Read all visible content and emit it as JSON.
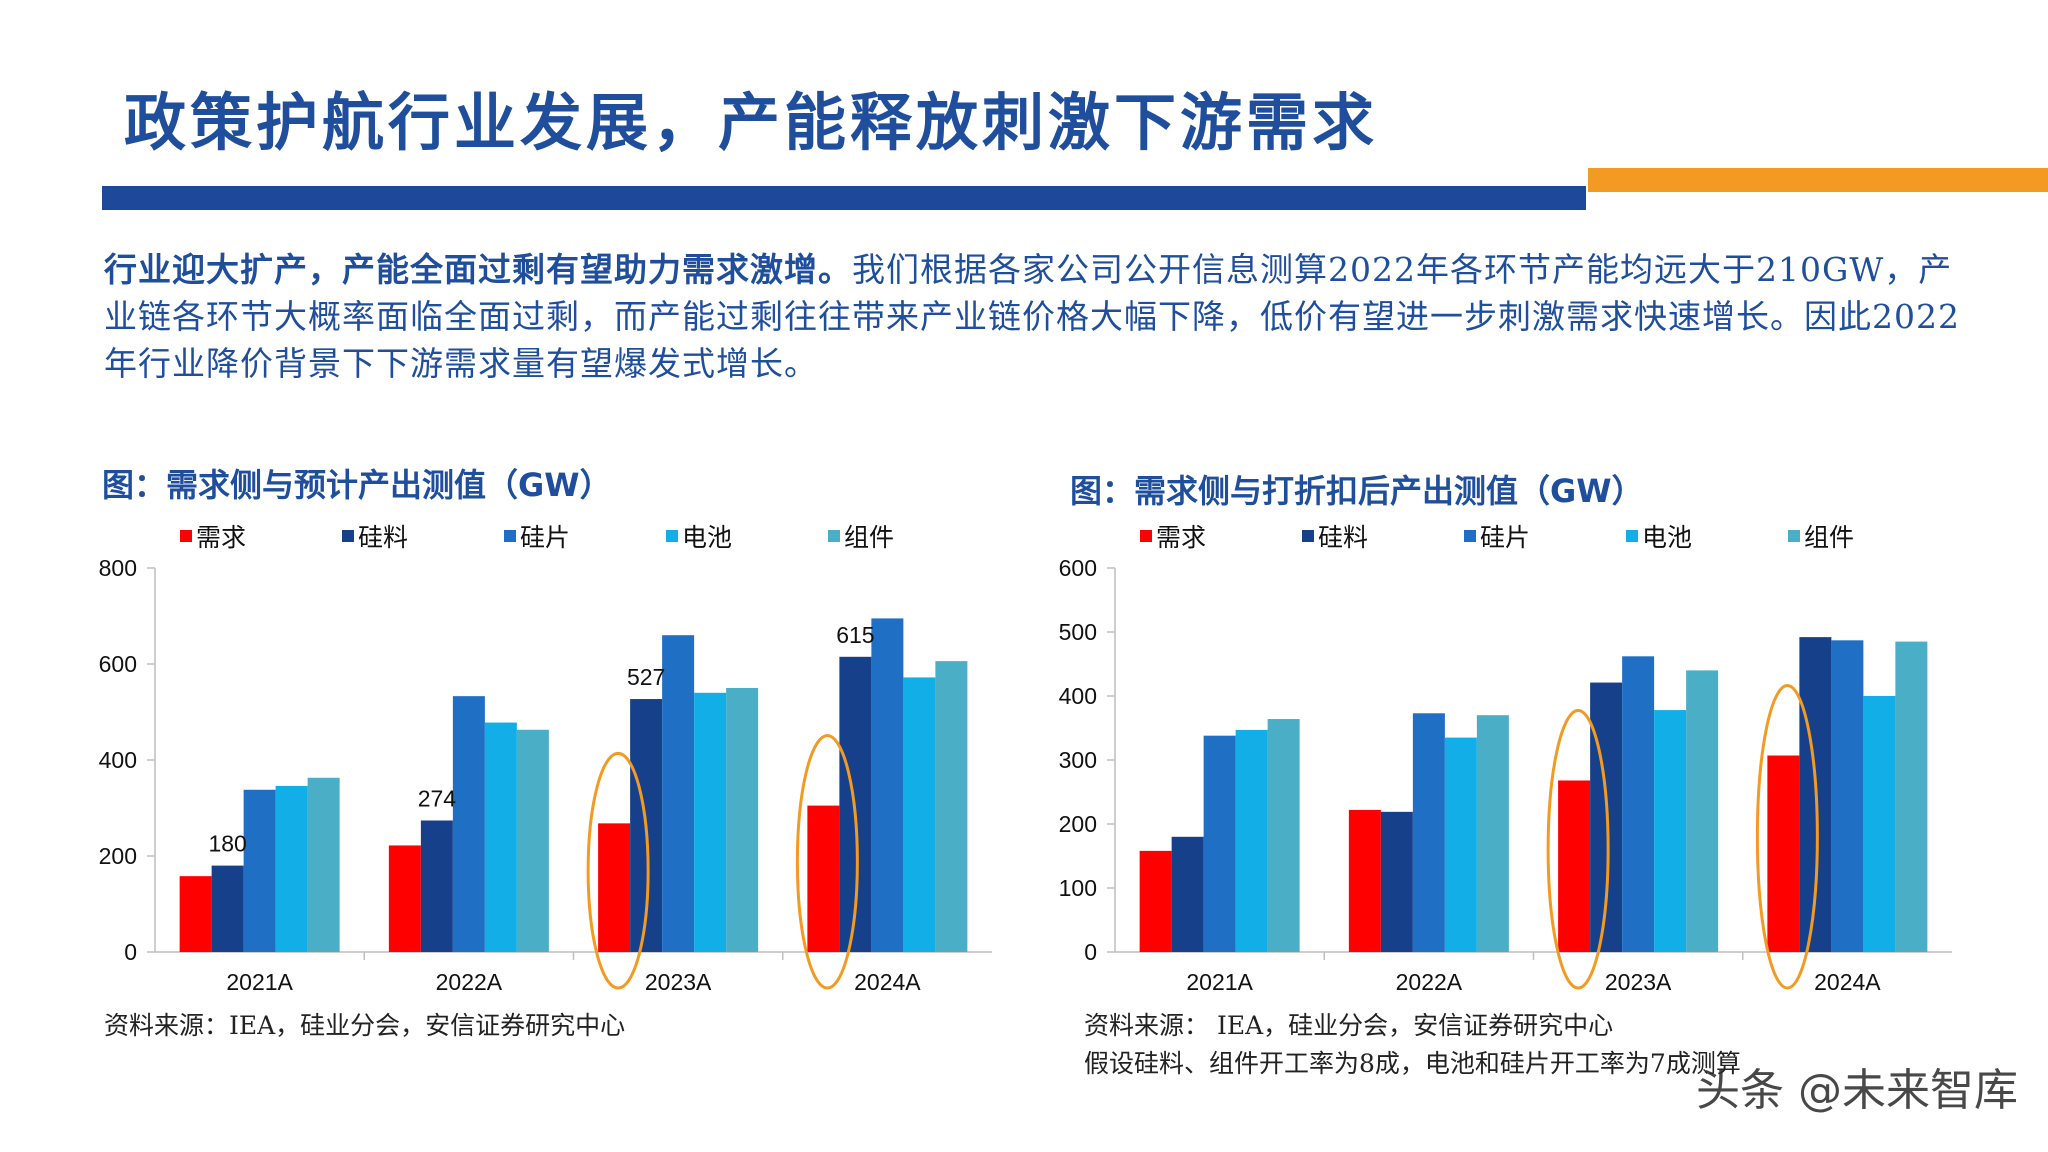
{
  "header": {
    "title": "政策护航行业发展，产能释放刺激下游需求"
  },
  "intro": {
    "lead": "行业迎大扩产，产能全面过剩有望助力需求激增。",
    "body": "我们根据各家公司公开信息测算2022年各环节产能均远大于210GW，产业链各环节大概率面临全面过剩，而产能过剩往往带来产业链价格大幅下降，低价有望进一步刺激需求快速增长。因此2022年行业降价背景下下游需求量有望爆发式增长。"
  },
  "charts_text": {
    "left_title": "图：需求侧与预计产出测值（GW）",
    "right_title": "图：需求侧与打折扣后产出测值（GW）",
    "left_source": "资料来源：IEA，硅业分会，安信证券研究中心",
    "right_source_1": "资料来源： IEA，硅业分会，安信证券研究中心",
    "right_source_2": "假设硅料、组件开工率为8成，电池和硅片开工率为7成测算"
  },
  "watermark": "头条 @未来智库",
  "colors": {
    "demand": "#ff0000",
    "silicon": "#17408b",
    "wafer": "#1f6fc5",
    "cell": "#12aee8",
    "module": "#4aaec7",
    "highlight": "#f39a22",
    "title": "#1f4e9c"
  },
  "chart_data": [
    {
      "type": "bar",
      "title": "图：需求侧与预计产出测值（GW）",
      "categories": [
        "2021A",
        "2022A",
        "2023A",
        "2024A"
      ],
      "ylim": [
        0,
        800
      ],
      "yticks": [
        0,
        200,
        400,
        600,
        800
      ],
      "legend_position": "top",
      "series": [
        {
          "name": "需求",
          "values": [
            158,
            222,
            268,
            305
          ]
        },
        {
          "name": "硅料",
          "values": [
            180,
            274,
            527,
            615
          ]
        },
        {
          "name": "硅片",
          "values": [
            338,
            533,
            660,
            695
          ]
        },
        {
          "name": "电池",
          "values": [
            346,
            478,
            540,
            572
          ]
        },
        {
          "name": "组件",
          "values": [
            363,
            463,
            550,
            606
          ]
        }
      ],
      "data_labels": [
        {
          "series": "硅料",
          "category": "2021A",
          "text": "180"
        },
        {
          "series": "硅料",
          "category": "2022A",
          "text": "274"
        },
        {
          "series": "硅料",
          "category": "2023A",
          "text": "527"
        },
        {
          "series": "硅料",
          "category": "2024A",
          "text": "615"
        }
      ],
      "highlighted_categories": [
        "2023A",
        "2024A"
      ]
    },
    {
      "type": "bar",
      "title": "图：需求侧与打折扣后产出测值（GW）",
      "categories": [
        "2021A",
        "2022A",
        "2023A",
        "2024A"
      ],
      "ylim": [
        0,
        600
      ],
      "yticks": [
        0,
        100,
        200,
        300,
        400,
        500,
        600
      ],
      "legend_position": "top",
      "series": [
        {
          "name": "需求",
          "values": [
            158,
            222,
            268,
            307
          ]
        },
        {
          "name": "硅料",
          "values": [
            180,
            219,
            421,
            492
          ]
        },
        {
          "name": "硅片",
          "values": [
            338,
            373,
            462,
            487
          ]
        },
        {
          "name": "电池",
          "values": [
            347,
            335,
            378,
            400
          ]
        },
        {
          "name": "组件",
          "values": [
            364,
            370,
            440,
            485
          ]
        }
      ],
      "highlighted_categories": [
        "2023A",
        "2024A"
      ]
    }
  ]
}
